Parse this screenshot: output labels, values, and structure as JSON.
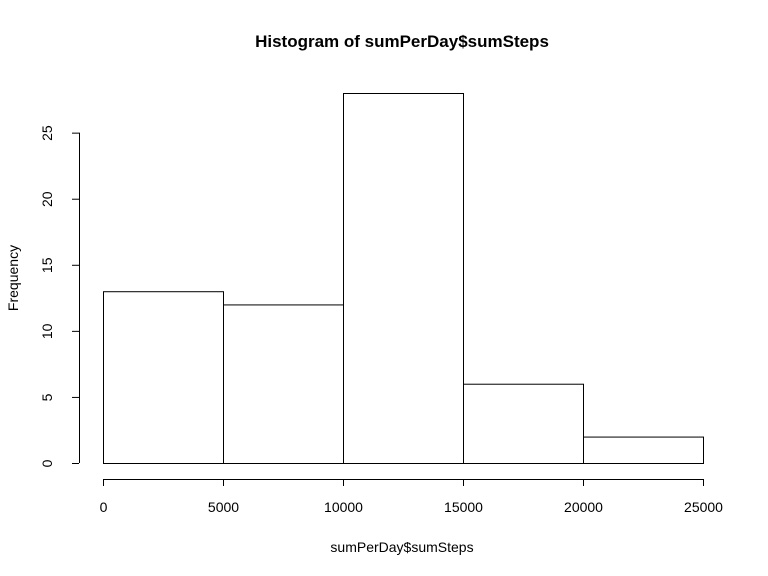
{
  "chart_data": {
    "type": "bar",
    "title": "Histogram of sumPerDay$sumSteps",
    "xlabel": "sumPerDay$sumSteps",
    "ylabel": "Frequency",
    "bins": [
      {
        "from": 0,
        "to": 5000,
        "count": 13
      },
      {
        "from": 5000,
        "to": 10000,
        "count": 12
      },
      {
        "from": 10000,
        "to": 15000,
        "count": 28
      },
      {
        "from": 15000,
        "to": 20000,
        "count": 6
      },
      {
        "from": 20000,
        "to": 25000,
        "count": 2
      }
    ],
    "xlim": [
      0,
      25000
    ],
    "ylim": [
      0,
      28
    ],
    "x_ticks": [
      0,
      5000,
      10000,
      15000,
      20000,
      25000
    ],
    "y_ticks": [
      0,
      5,
      10,
      15,
      20,
      25
    ],
    "grid": false,
    "legend": "none"
  }
}
